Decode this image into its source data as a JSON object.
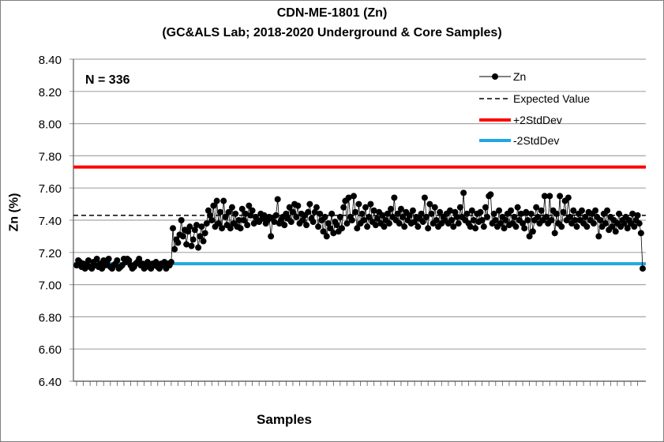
{
  "chart_data": {
    "type": "line",
    "title": "CDN-ME-1801 (Zn)",
    "subtitle": "(GC&ALS Lab; 2018-2020 Underground & Core Samples)",
    "xlabel": "Samples",
    "ylabel": "Zn (%)",
    "ylim": [
      6.4,
      8.4
    ],
    "yticks": [
      "6.40",
      "6.60",
      "6.80",
      "7.00",
      "7.20",
      "7.40",
      "7.60",
      "7.80",
      "8.00",
      "8.20",
      "8.40"
    ],
    "grid": true,
    "annotation": "N = 336",
    "legend_position": "top-right",
    "legend": [
      "Zn",
      "Expected Value",
      "+2StdDev",
      "-2StdDev"
    ],
    "expected_value": 7.43,
    "plus_2sd": 7.73,
    "minus_2sd": 7.13,
    "colors": {
      "zn": "#000000",
      "expected": "#000000",
      "plus2sd": "#ff0000",
      "minus2sd": "#1fa8e0"
    },
    "series": [
      {
        "name": "Zn",
        "values": [
          7.12,
          7.15,
          7.14,
          7.11,
          7.13,
          7.1,
          7.12,
          7.15,
          7.11,
          7.1,
          7.14,
          7.12,
          7.16,
          7.11,
          7.13,
          7.1,
          7.15,
          7.12,
          7.14,
          7.16,
          7.11,
          7.1,
          7.12,
          7.13,
          7.15,
          7.1,
          7.11,
          7.12,
          7.16,
          7.14,
          7.16,
          7.15,
          7.12,
          7.1,
          7.11,
          7.13,
          7.14,
          7.16,
          7.12,
          7.13,
          7.1,
          7.11,
          7.14,
          7.12,
          7.1,
          7.13,
          7.12,
          7.14,
          7.11,
          7.1,
          7.13,
          7.12,
          7.14,
          7.1,
          7.13,
          7.12,
          7.14,
          7.35,
          7.22,
          7.28,
          7.26,
          7.31,
          7.4,
          7.3,
          7.34,
          7.25,
          7.33,
          7.36,
          7.24,
          7.28,
          7.34,
          7.37,
          7.23,
          7.3,
          7.36,
          7.27,
          7.32,
          7.38,
          7.46,
          7.43,
          7.4,
          7.49,
          7.36,
          7.52,
          7.38,
          7.45,
          7.35,
          7.52,
          7.42,
          7.37,
          7.45,
          7.35,
          7.48,
          7.38,
          7.44,
          7.36,
          7.4,
          7.35,
          7.47,
          7.4,
          7.44,
          7.37,
          7.49,
          7.43,
          7.46,
          7.38,
          7.42,
          7.4,
          7.39,
          7.44,
          7.41,
          7.43,
          7.38,
          7.4,
          7.42,
          7.3,
          7.41,
          7.39,
          7.43,
          7.53,
          7.38,
          7.4,
          7.42,
          7.37,
          7.44,
          7.41,
          7.48,
          7.39,
          7.45,
          7.5,
          7.42,
          7.49,
          7.38,
          7.44,
          7.4,
          7.43,
          7.37,
          7.45,
          7.5,
          7.41,
          7.39,
          7.45,
          7.48,
          7.36,
          7.44,
          7.4,
          7.33,
          7.42,
          7.3,
          7.38,
          7.35,
          7.44,
          7.32,
          7.39,
          7.37,
          7.33,
          7.42,
          7.35,
          7.48,
          7.52,
          7.38,
          7.54,
          7.42,
          7.4,
          7.55,
          7.45,
          7.35,
          7.5,
          7.38,
          7.44,
          7.4,
          7.48,
          7.36,
          7.42,
          7.5,
          7.39,
          7.46,
          7.37,
          7.41,
          7.45,
          7.38,
          7.43,
          7.36,
          7.4,
          7.44,
          7.38,
          7.47,
          7.42,
          7.54,
          7.4,
          7.44,
          7.38,
          7.47,
          7.42,
          7.36,
          7.45,
          7.4,
          7.43,
          7.38,
          7.46,
          7.39,
          7.42,
          7.36,
          7.41,
          7.44,
          7.39,
          7.54,
          7.42,
          7.35,
          7.5,
          7.44,
          7.38,
          7.48,
          7.4,
          7.36,
          7.45,
          7.38,
          7.42,
          7.4,
          7.44,
          7.38,
          7.46,
          7.4,
          7.36,
          7.45,
          7.42,
          7.38,
          7.48,
          7.42,
          7.57,
          7.4,
          7.44,
          7.38,
          7.36,
          7.46,
          7.4,
          7.35,
          7.44,
          7.39,
          7.45,
          7.4,
          7.36,
          7.48,
          7.42,
          7.55,
          7.56,
          7.38,
          7.44,
          7.4,
          7.36,
          7.46,
          7.38,
          7.42,
          7.35,
          7.4,
          7.44,
          7.37,
          7.46,
          7.38,
          7.42,
          7.36,
          7.48,
          7.4,
          7.44,
          7.38,
          7.35,
          7.45,
          7.4,
          7.3,
          7.44,
          7.33,
          7.4,
          7.48,
          7.42,
          7.38,
          7.46,
          7.4,
          7.55,
          7.42,
          7.38,
          7.55,
          7.4,
          7.46,
          7.32,
          7.44,
          7.38,
          7.55,
          7.36,
          7.45,
          7.52,
          7.4,
          7.54,
          7.42,
          7.38,
          7.46,
          7.4,
          7.36,
          7.44,
          7.4,
          7.46,
          7.38,
          7.42,
          7.36,
          7.45,
          7.4,
          7.44,
          7.38,
          7.46,
          7.42,
          7.3,
          7.4,
          7.36,
          7.44,
          7.38,
          7.46,
          7.34,
          7.42,
          7.36,
          7.4,
          7.33,
          7.38,
          7.44,
          7.36,
          7.4,
          7.38,
          7.42,
          7.35,
          7.4,
          7.38,
          7.44,
          7.36,
          7.4,
          7.43,
          7.38,
          7.32,
          7.1
        ]
      }
    ]
  }
}
